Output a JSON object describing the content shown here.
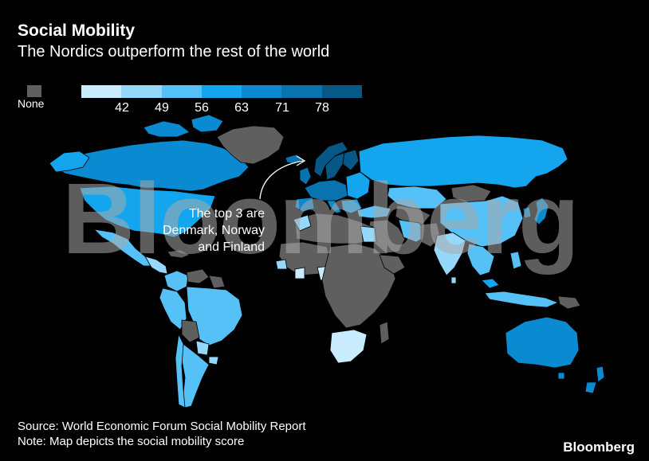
{
  "header": {
    "title": "Social Mobility",
    "subtitle": "The Nordics outperform the rest of the world"
  },
  "legend": {
    "none_label": "None",
    "none_color": "#5f5f5f",
    "scale_colors": [
      "#c9ecfe",
      "#94d8fb",
      "#55c1f6",
      "#13a6ee",
      "#0a8ad0",
      "#0873af",
      "#075886"
    ],
    "ticks": [
      "42",
      "49",
      "56",
      "63",
      "71",
      "78"
    ]
  },
  "annotation": {
    "text": "The top 3 are Denmark, Norway and Finland"
  },
  "watermark": {
    "text": "Bloomberg"
  },
  "footer": {
    "source": "Source: World Economic Forum Social Mobility Report",
    "note": "Note: Map depicts the social mobility score",
    "brand": "Bloomberg"
  },
  "colors": {
    "background": "#000000",
    "text": "#ffffff",
    "country_border": "#000000"
  }
}
